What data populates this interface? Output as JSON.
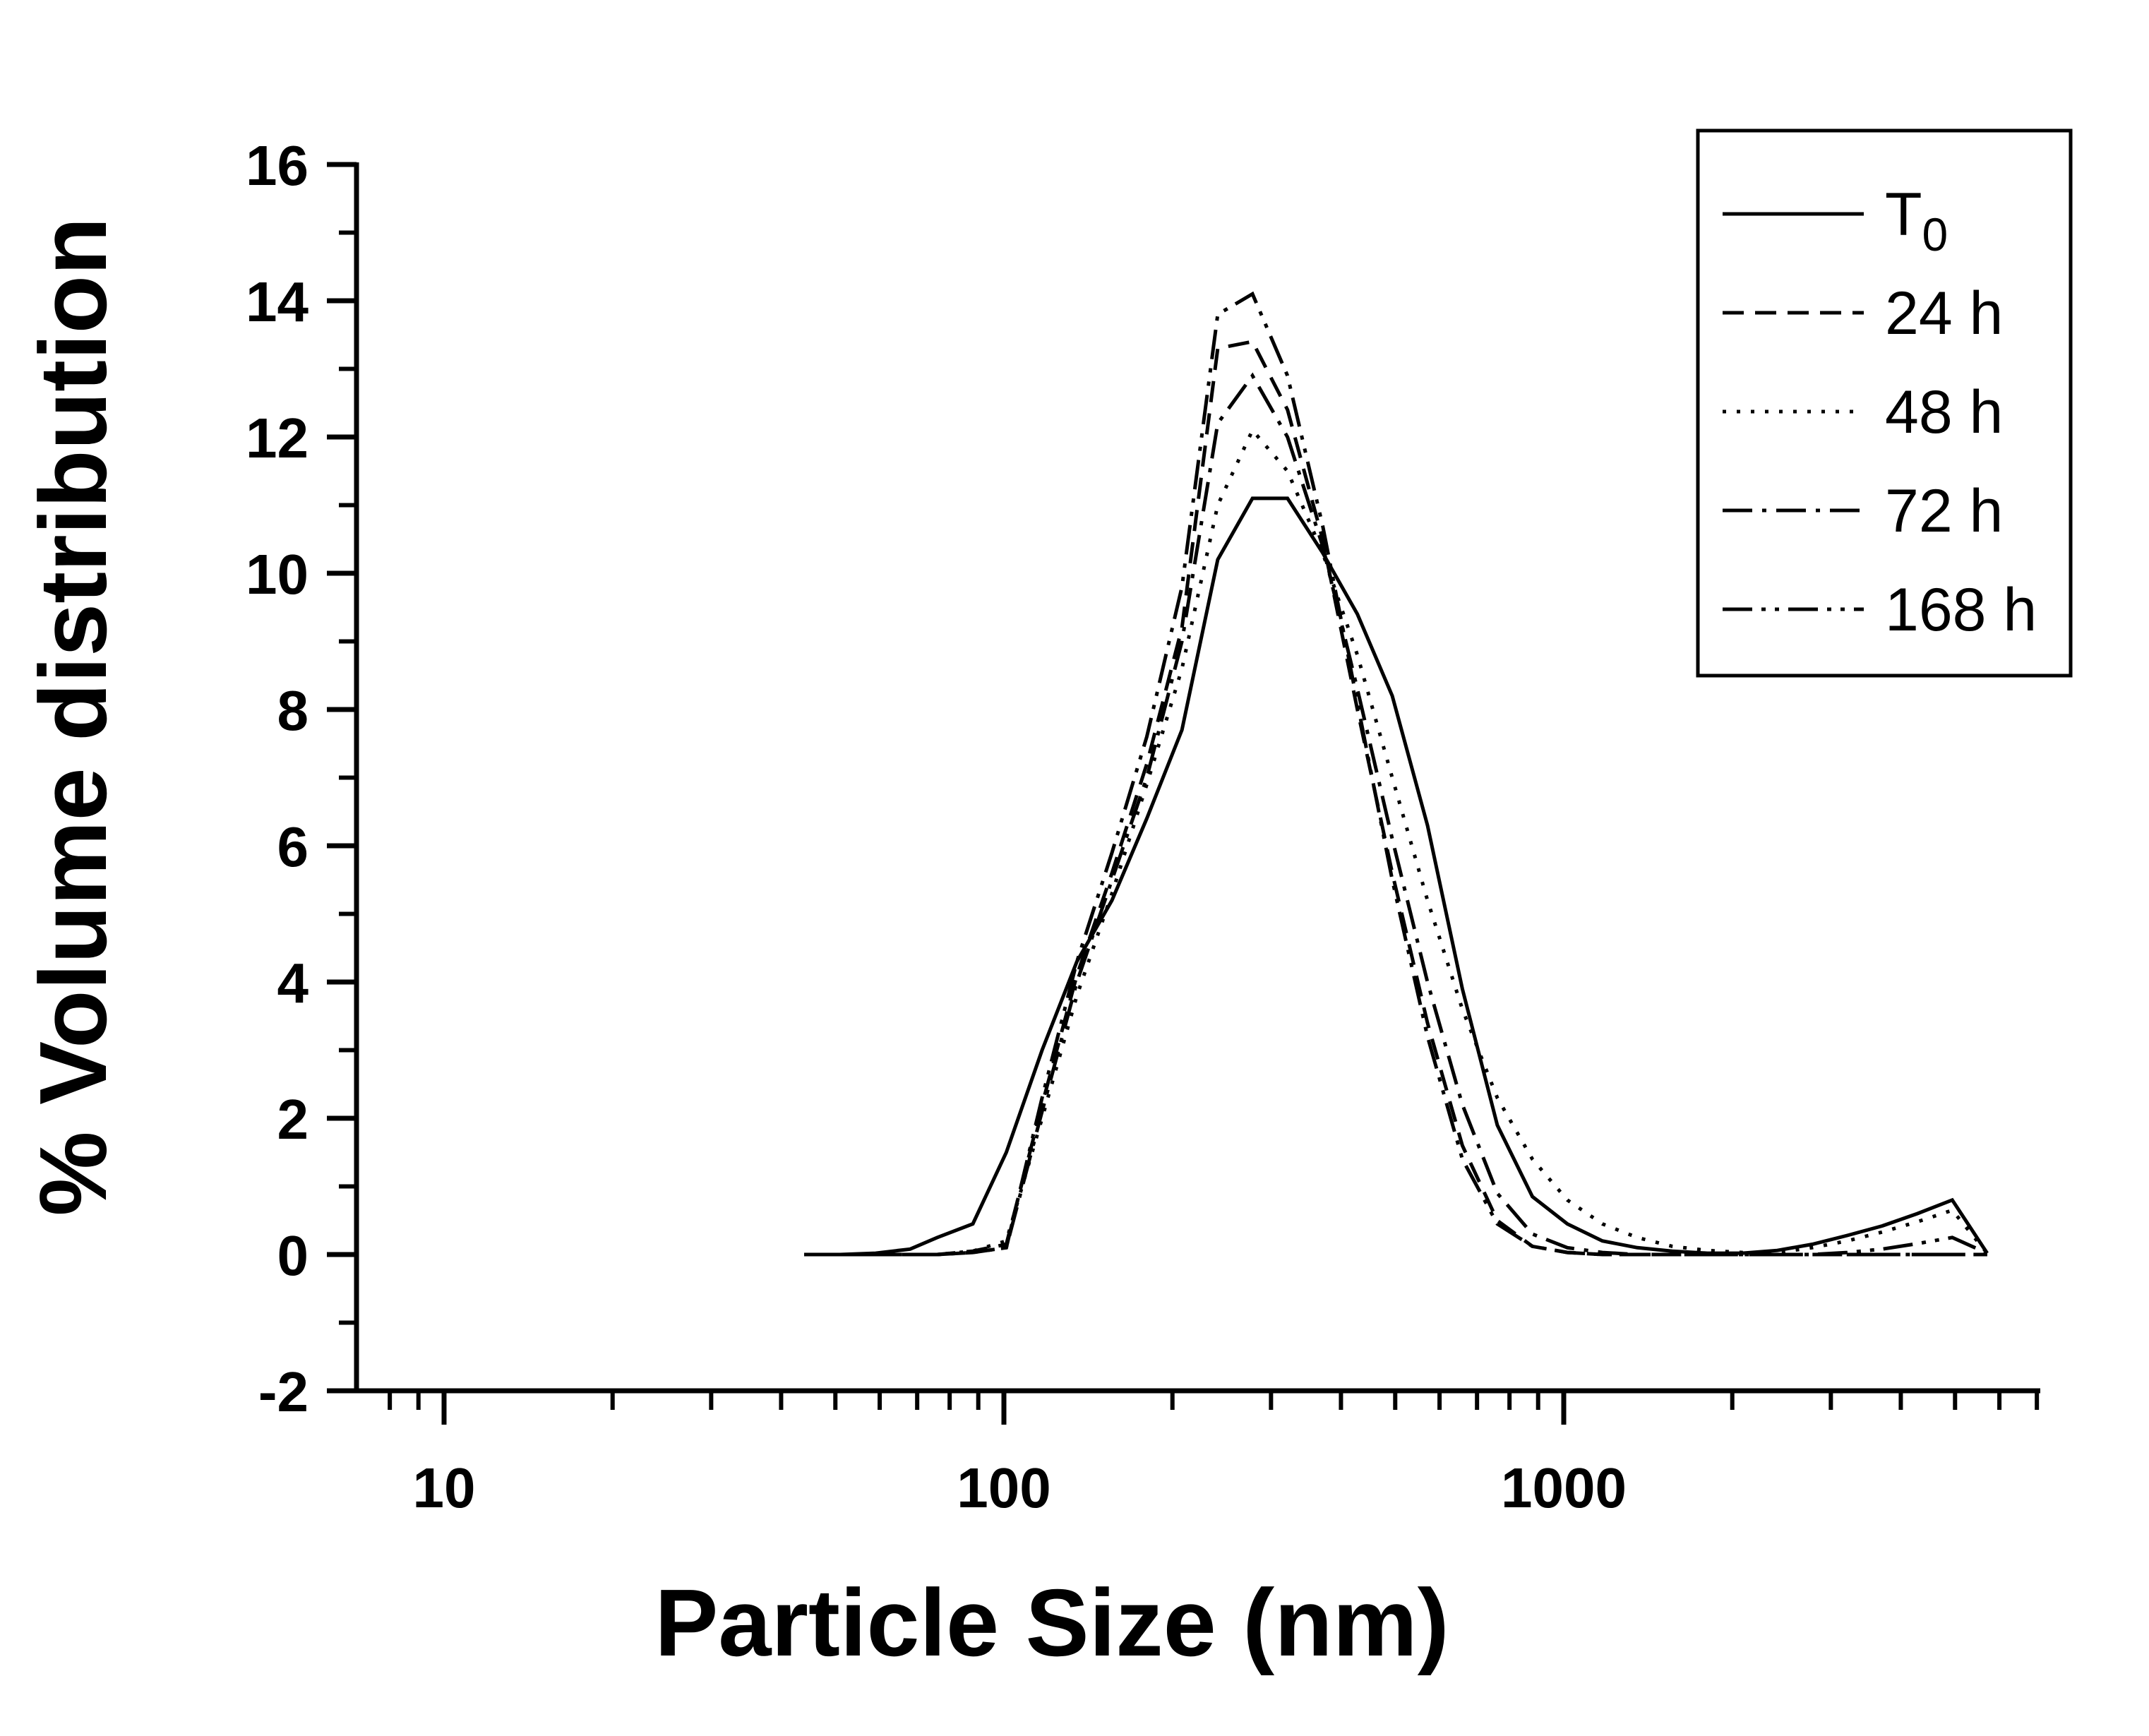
{
  "figure": {
    "background": "#ffffff",
    "ink_color": "#000000"
  },
  "chart_data": {
    "type": "line",
    "title": "",
    "xlabel": "Particle Size (nm)",
    "ylabel": "% Volume distribution",
    "x_scale": "log",
    "xlim": [
      7,
      7070
    ],
    "ylim": [
      -2,
      16
    ],
    "grid": "off",
    "legend_position": "top-right",
    "x_major_ticks": [
      {
        "value": 10,
        "label": "10"
      },
      {
        "value": 100,
        "label": "100"
      },
      {
        "value": 1000,
        "label": "1000"
      }
    ],
    "x_minor_ticks": [
      8,
      9,
      20,
      30,
      40,
      50,
      60,
      70,
      80,
      90,
      200,
      300,
      400,
      500,
      600,
      700,
      800,
      900,
      2000,
      3000,
      4000,
      5000,
      6000,
      7000
    ],
    "y_major_ticks": [
      {
        "value": 16,
        "label": "16"
      },
      {
        "value": 14,
        "label": "14"
      },
      {
        "value": 12,
        "label": "12"
      },
      {
        "value": 10,
        "label": "10"
      },
      {
        "value": 8,
        "label": "8"
      },
      {
        "value": 6,
        "label": "6"
      },
      {
        "value": 4,
        "label": "4"
      },
      {
        "value": 2,
        "label": "2"
      },
      {
        "value": 0,
        "label": "0"
      },
      {
        "value": -2,
        "label": "-2"
      }
    ],
    "y_minor_ticks": [
      15,
      13,
      11,
      9,
      7,
      5,
      3,
      1,
      -1
    ],
    "x_bins_nm": [
      44,
      51,
      59,
      68,
      76,
      88,
      101,
      117,
      135,
      156,
      180,
      208,
      241,
      278,
      321,
      371,
      428,
      494,
      571,
      659,
      761,
      879,
      1015,
      1172,
      1353,
      1563,
      1805,
      2084,
      2407,
      2779,
      3209,
      3706,
      4280,
      4942,
      5707
    ],
    "series": [
      {
        "name": "T0",
        "legend_label": "T",
        "legend_sub": "0",
        "line_style": "solid",
        "peak": {
          "x_nm": 300,
          "y": 11.1
        },
        "values": [
          0,
          0,
          0.02,
          0.08,
          0.25,
          0.45,
          1.5,
          3.0,
          4.3,
          5.2,
          6.4,
          7.7,
          10.2,
          11.1,
          11.1,
          10.3,
          9.4,
          8.2,
          6.3,
          3.9,
          1.9,
          0.85,
          0.45,
          0.2,
          0.1,
          0.05,
          0.02,
          0.02,
          0.06,
          0.15,
          0.28,
          0.42,
          0.6,
          0.8,
          0.02
        ]
      },
      {
        "name": "24h",
        "legend_label": "24 h",
        "legend_sub": "",
        "line_style": "dashed",
        "peak": {
          "x_nm": 278,
          "y": 13.4
        },
        "values": [
          0,
          0,
          0,
          0,
          0,
          0.05,
          0.15,
          2.2,
          4.1,
          5.6,
          7.2,
          9.2,
          13.3,
          13.4,
          12.4,
          10.5,
          8.0,
          5.6,
          3.4,
          1.6,
          0.5,
          0.12,
          0.03,
          0,
          0,
          0,
          0,
          0,
          0,
          0,
          0,
          0,
          0,
          0,
          0
        ]
      },
      {
        "name": "48h",
        "legend_label": "48 h",
        "legend_sub": "",
        "line_style": "dotted",
        "peak": {
          "x_nm": 278,
          "y": 12.1
        },
        "values": [
          0,
          0,
          0,
          0,
          0,
          0.05,
          0.2,
          2.0,
          3.8,
          5.3,
          6.9,
          8.6,
          11.0,
          12.1,
          11.5,
          10.3,
          8.8,
          7.0,
          5.2,
          3.6,
          2.3,
          1.4,
          0.8,
          0.45,
          0.25,
          0.12,
          0.06,
          0.03,
          0.03,
          0.1,
          0.2,
          0.33,
          0.48,
          0.65,
          0.02
        ]
      },
      {
        "name": "72h",
        "legend_label": "72 h",
        "legend_sub": "",
        "line_style": "dashdot",
        "peak": {
          "x_nm": 278,
          "y": 12.9
        },
        "values": [
          0,
          0,
          0,
          0,
          0,
          0.03,
          0.1,
          2.1,
          4.0,
          5.5,
          7.0,
          9.0,
          12.2,
          12.9,
          12.0,
          10.4,
          8.3,
          6.1,
          4.0,
          2.2,
          0.9,
          0.3,
          0.1,
          0.03,
          0,
          0,
          0,
          0,
          0,
          0,
          0,
          0,
          0,
          0,
          0
        ]
      },
      {
        "name": "168h",
        "legend_label": "168 h",
        "legend_sub": "",
        "line_style": "dashdotdot",
        "peak": {
          "x_nm": 278,
          "y": 14.1
        },
        "values": [
          0,
          0,
          0,
          0,
          0,
          0.03,
          0.1,
          2.3,
          4.3,
          5.9,
          7.6,
          9.8,
          13.8,
          14.1,
          12.9,
          10.7,
          8.1,
          5.5,
          3.2,
          1.4,
          0.45,
          0.12,
          0.03,
          0,
          0,
          0,
          0,
          0,
          0,
          0,
          0.03,
          0.08,
          0.16,
          0.25,
          0.02
        ]
      }
    ]
  }
}
